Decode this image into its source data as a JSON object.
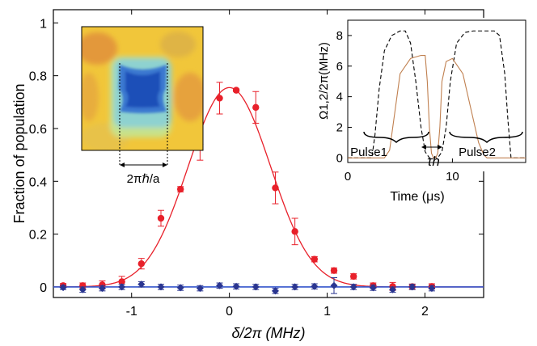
{
  "chart_data": [
    {
      "type": "scatter",
      "xlabel": "δ/2π (MHz)",
      "ylabel": "Fraction of population",
      "xlim": [
        -1.8,
        2.6
      ],
      "ylim": [
        -0.04,
        1.05
      ],
      "xticks": [
        -1,
        0,
        1,
        2
      ],
      "xtick_labels": [
        "-1",
        "0",
        "1",
        "2"
      ],
      "yticks": [
        0,
        0.2,
        0.4,
        0.6,
        0.8,
        1
      ],
      "ytick_labels": [
        "0",
        "0.2",
        "0.4",
        "0.6",
        "0.8",
        "1"
      ],
      "grid": false,
      "series": [
        {
          "color": "#e8202a",
          "marker": "circle",
          "x": [
            -1.7,
            -1.5,
            -1.3,
            -1.1,
            -0.9,
            -0.7,
            -0.5,
            -0.3,
            -0.1,
            0.07,
            0.27,
            0.47,
            0.67,
            0.87,
            1.07,
            1.27,
            1.47,
            1.67,
            1.87,
            2.07
          ],
          "y": [
            0.005,
            0.005,
            0.008,
            0.02,
            0.088,
            0.26,
            0.37,
            0.54,
            0.715,
            0.745,
            0.68,
            0.375,
            0.21,
            0.105,
            0.062,
            0.04,
            0.005,
            0.002,
            0.001,
            0.002
          ],
          "error": [
            0.008,
            0.01,
            0.015,
            0.02,
            0.02,
            0.03,
            0.01,
            0.06,
            0.06,
            0.005,
            0.06,
            0.06,
            0.05,
            0.01,
            0.01,
            0.01,
            0.01,
            0.015,
            0.01,
            0.01
          ]
        },
        {
          "color": "#2a3590",
          "marker": "diamond",
          "x": [
            -1.7,
            -1.5,
            -1.3,
            -1.1,
            -0.9,
            -0.7,
            -0.5,
            -0.3,
            -0.1,
            0.07,
            0.27,
            0.47,
            0.67,
            0.87,
            1.07,
            1.27,
            1.47,
            1.67,
            1.87,
            2.07
          ],
          "y": [
            -0.002,
            -0.01,
            -0.005,
            0.0,
            0.01,
            0.0,
            -0.003,
            -0.005,
            0.005,
            0.002,
            0.0,
            -0.015,
            0.0,
            0.002,
            0.005,
            0.0,
            -0.003,
            -0.01,
            0.0,
            -0.005
          ],
          "error": [
            0.008,
            0.01,
            0.01,
            0.01,
            0.01,
            0.01,
            0.01,
            0.01,
            0.01,
            0.01,
            0.01,
            0.01,
            0.01,
            0.01,
            0.03,
            0.01,
            0.01,
            0.01,
            0.01,
            0.01
          ]
        }
      ],
      "fit_curves": [
        {
          "color": "#e8202a",
          "model": "gaussian",
          "amplitude": 0.755,
          "center": 0.0,
          "sigma": 0.42
        },
        {
          "color": "#3355cc",
          "model": "constant",
          "value": 0.0
        }
      ],
      "image_inset": {
        "scale_label": "2πℏ/a"
      }
    },
    {
      "type": "line",
      "xlabel": "Time (μs)",
      "ylabel": "Ω1,2/2π(MHz)",
      "xlim": [
        0,
        17
      ],
      "ylim": [
        -0.3,
        9
      ],
      "xticks": [
        0,
        10
      ],
      "xtick_labels": [
        "0",
        "10"
      ],
      "yticks": [
        0,
        2,
        4,
        6,
        8
      ],
      "ytick_labels": [
        "0",
        "2",
        "4",
        "6",
        "8"
      ],
      "series": [
        {
          "color": "#000000",
          "style": "dashed",
          "x": [
            0,
            2.3,
            2.6,
            3.0,
            3.5,
            4.2,
            5.0,
            5.5,
            6.0,
            6.5,
            7.0,
            7.4,
            7.8,
            8.2,
            8.6,
            9.0,
            9.4,
            9.8,
            10.4,
            11.2,
            12.0,
            13.0,
            14.0,
            14.5,
            15.0,
            15.3,
            15.6,
            17.0
          ],
          "y": [
            0,
            0,
            1.5,
            4.5,
            7.0,
            8.0,
            8.3,
            8.3,
            7.5,
            5.0,
            2.0,
            0.4,
            0,
            0,
            0,
            0.4,
            2.0,
            5.0,
            7.5,
            8.2,
            8.3,
            8.3,
            8.3,
            8.0,
            5.5,
            2.5,
            0,
            0
          ]
        },
        {
          "color": "#c08050",
          "style": "solid",
          "x": [
            0,
            3.5,
            4.0,
            4.5,
            5.0,
            6.0,
            7.0,
            7.4,
            7.6,
            7.8,
            8.0,
            8.2,
            8.4,
            8.6,
            8.8,
            9.0,
            9.4,
            10.0,
            11.0,
            12.0,
            12.5,
            13.0,
            13.3,
            17.0
          ],
          "y": [
            0,
            0,
            0.5,
            3.0,
            5.5,
            6.5,
            6.7,
            6.7,
            5.0,
            2.0,
            0.3,
            0,
            0,
            0.3,
            2.0,
            5.0,
            6.3,
            6.5,
            5.5,
            2.5,
            1.0,
            0.2,
            0,
            0
          ]
        }
      ],
      "annotations": [
        {
          "label": "Pulse1"
        },
        {
          "label": "Pulse2"
        },
        {
          "label": "τh"
        }
      ]
    }
  ]
}
